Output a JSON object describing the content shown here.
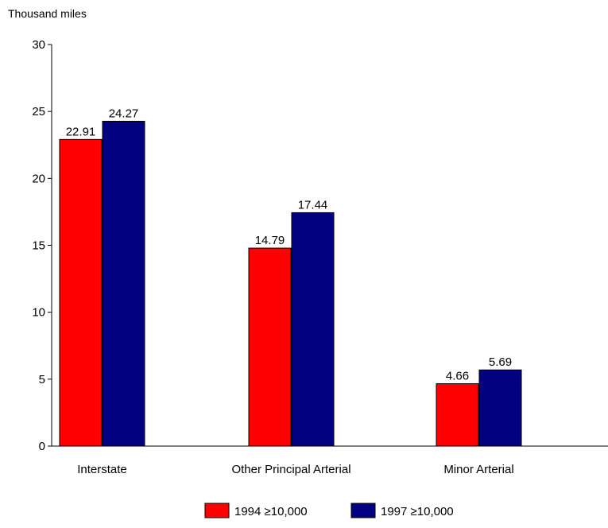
{
  "chart_data": {
    "type": "bar",
    "ylabel": "Thousand miles",
    "categories": [
      "Interstate",
      "Other Principal Arterial",
      "Minor Arterial"
    ],
    "series": [
      {
        "name": "1994 ≥10,000",
        "values": [
          22.91,
          14.79,
          4.66
        ],
        "labels": [
          "22.91",
          "14.79",
          "4.66"
        ],
        "color": "#ff0000"
      },
      {
        "name": "1997 ≥10,000",
        "values": [
          24.27,
          17.44,
          5.69
        ],
        "labels": [
          "24.27",
          "17.44",
          "5.69"
        ],
        "color": "#000080"
      }
    ],
    "ylim": [
      0,
      30
    ],
    "yticks": [
      "0",
      "5",
      "10",
      "15",
      "20",
      "25",
      "30"
    ],
    "grid": false,
    "legend_position": "bottom"
  }
}
